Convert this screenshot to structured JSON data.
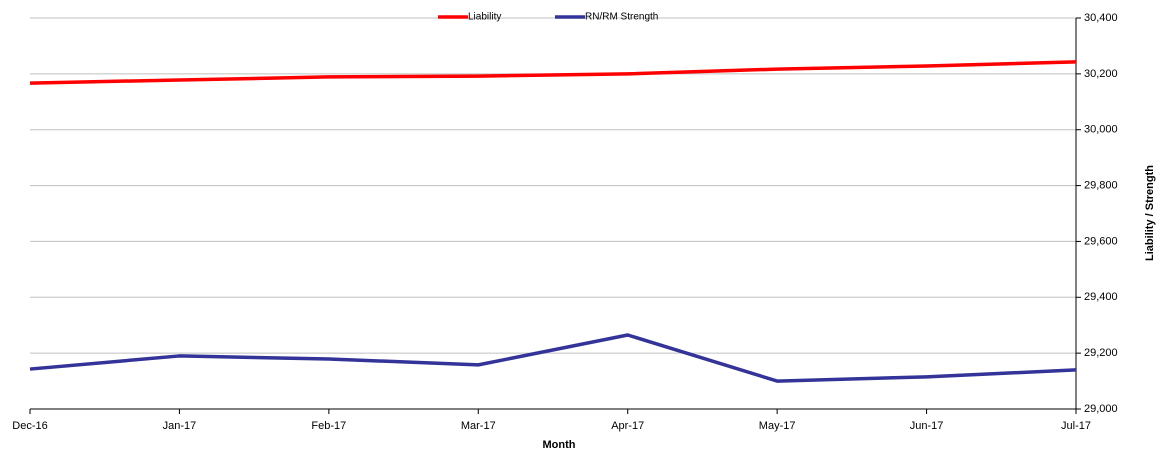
{
  "chart_data": {
    "type": "line",
    "categories": [
      "Dec-16",
      "Jan-17",
      "Feb-17",
      "Mar-17",
      "Apr-17",
      "May-17",
      "Jun-17",
      "Jul-17"
    ],
    "series": [
      {
        "name": "Liability",
        "color": "#ff0000",
        "values": [
          30167,
          30178,
          30189,
          30192,
          30200,
          30217,
          30228,
          30243
        ]
      },
      {
        "name": "RN/RM Strength",
        "color": "#333399",
        "values": [
          29143,
          29190,
          29179,
          29158,
          29265,
          29100,
          29115,
          29140
        ]
      }
    ],
    "x_label": "Month",
    "y_label": "Liability / Strength",
    "ylim": [
      29000,
      30400
    ],
    "yticks": [
      {
        "value": 29000,
        "label": "29,000"
      },
      {
        "value": 29200,
        "label": "29,200"
      },
      {
        "value": 29400,
        "label": "29,400"
      },
      {
        "value": 29600,
        "label": "29,600"
      },
      {
        "value": 29800,
        "label": "29,800"
      },
      {
        "value": 30000,
        "label": "30,000"
      },
      {
        "value": 30200,
        "label": "30,200"
      },
      {
        "value": 30400,
        "label": "30,400"
      }
    ],
    "grid": true,
    "legend": "top"
  }
}
